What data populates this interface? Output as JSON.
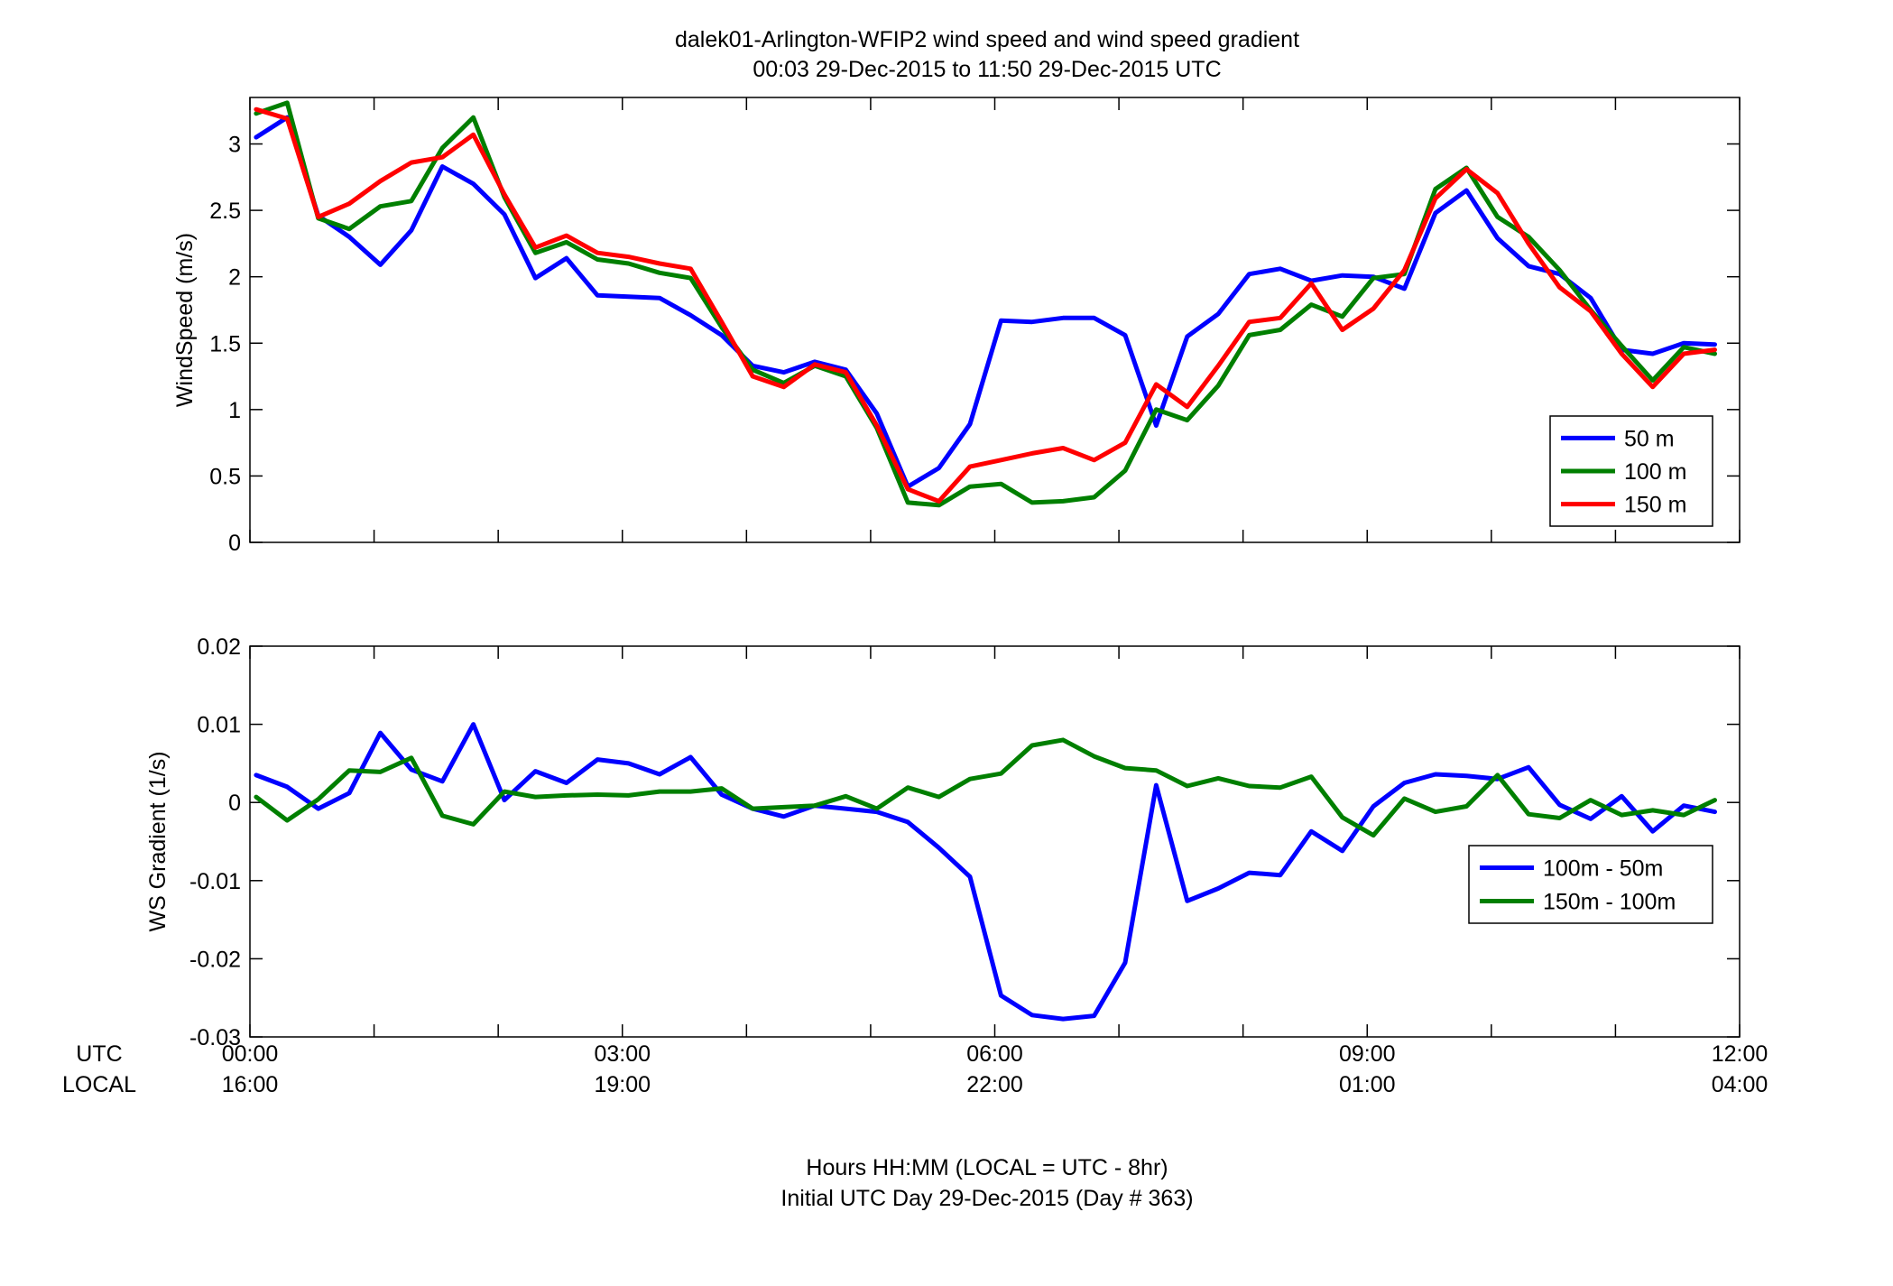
{
  "figure": {
    "title_line1": "dalek01-Arlington-WFIP2  wind speed and wind speed gradient",
    "title_line2": "00:03 29-Dec-2015 to 11:50 29-Dec-2015  UTC",
    "xlabel_line1": "Hours HH:MM  (LOCAL = UTC - 8hr)",
    "xlabel_line2": "Initial UTC Day 29-Dec-2015 (Day # 363)",
    "row_label_utc": "UTC",
    "row_label_local": "LOCAL"
  },
  "chart_data": [
    {
      "type": "line",
      "ylabel": "WindSpeed (m/s)",
      "xlim": [
        0,
        12
      ],
      "ylim": [
        0,
        3.35
      ],
      "yticks": [
        0,
        0.5,
        1,
        1.5,
        2,
        2.5,
        3
      ],
      "ytick_labels": [
        "0",
        "0.5",
        "1",
        "1.5",
        "2",
        "2.5",
        "3"
      ],
      "legend_position": "bottom-right",
      "x": [
        0.05,
        0.3,
        0.55,
        0.8,
        1.05,
        1.3,
        1.55,
        1.8,
        2.05,
        2.3,
        2.55,
        2.8,
        3.05,
        3.3,
        3.55,
        3.8,
        4.05,
        4.3,
        4.55,
        4.8,
        5.05,
        5.3,
        5.55,
        5.8,
        6.05,
        6.3,
        6.55,
        6.8,
        7.05,
        7.3,
        7.55,
        7.8,
        8.05,
        8.3,
        8.55,
        8.8,
        9.05,
        9.3,
        9.55,
        9.8,
        10.05,
        10.3,
        10.55,
        10.8,
        11.05,
        11.3,
        11.55,
        11.8
      ],
      "series": [
        {
          "name": "50 m",
          "color": "#0000ff",
          "values": [
            3.05,
            3.2,
            2.46,
            2.3,
            2.09,
            2.35,
            2.83,
            2.7,
            2.47,
            1.99,
            2.14,
            1.86,
            1.85,
            1.84,
            1.71,
            1.56,
            1.33,
            1.28,
            1.36,
            1.3,
            0.97,
            0.42,
            0.56,
            0.89,
            1.67,
            1.66,
            1.69,
            1.69,
            1.56,
            0.88,
            1.55,
            1.72,
            2.02,
            2.06,
            1.97,
            2.01,
            2.0,
            1.91,
            2.48,
            2.65,
            2.29,
            2.08,
            2.02,
            1.84,
            1.45,
            1.42,
            1.5,
            1.49
          ]
        },
        {
          "name": "100 m",
          "color": "#007f00",
          "values": [
            3.23,
            3.31,
            2.44,
            2.36,
            2.53,
            2.57,
            2.97,
            3.2,
            2.6,
            2.18,
            2.26,
            2.13,
            2.1,
            2.03,
            1.99,
            1.62,
            1.3,
            1.2,
            1.33,
            1.25,
            0.86,
            0.3,
            0.28,
            0.42,
            0.44,
            0.3,
            0.31,
            0.34,
            0.54,
            1.0,
            0.92,
            1.18,
            1.56,
            1.6,
            1.79,
            1.7,
            1.99,
            2.02,
            2.66,
            2.82,
            2.45,
            2.3,
            2.05,
            1.75,
            1.48,
            1.22,
            1.47,
            1.42
          ]
        },
        {
          "name": "150 m",
          "color": "#ff0000",
          "values": [
            3.26,
            3.19,
            2.45,
            2.55,
            2.72,
            2.86,
            2.9,
            3.07,
            2.62,
            2.22,
            2.31,
            2.18,
            2.15,
            2.1,
            2.06,
            1.66,
            1.25,
            1.17,
            1.34,
            1.28,
            0.88,
            0.4,
            0.31,
            0.57,
            0.62,
            0.67,
            0.71,
            0.62,
            0.75,
            1.19,
            1.02,
            1.33,
            1.66,
            1.69,
            1.95,
            1.6,
            1.76,
            2.05,
            2.59,
            2.81,
            2.63,
            2.25,
            1.92,
            1.74,
            1.42,
            1.17,
            1.42,
            1.45
          ]
        }
      ]
    },
    {
      "type": "line",
      "ylabel": "WS Gradient (1/s)",
      "xlim": [
        0,
        12
      ],
      "ylim": [
        -0.03,
        0.02
      ],
      "yticks": [
        -0.03,
        -0.02,
        -0.01,
        0,
        0.01,
        0.02
      ],
      "ytick_labels": [
        "-0.03",
        "-0.02",
        "-0.01",
        "0",
        "0.01",
        "0.02"
      ],
      "xticks": [
        0,
        3,
        6,
        9,
        12
      ],
      "xtick_labels_utc": [
        "00:00",
        "03:00",
        "06:00",
        "09:00",
        "12:00"
      ],
      "xtick_labels_local": [
        "16:00",
        "19:00",
        "22:00",
        "01:00",
        "04:00"
      ],
      "legend_position": "right",
      "x": [
        0.05,
        0.3,
        0.55,
        0.8,
        1.05,
        1.3,
        1.55,
        1.8,
        2.05,
        2.3,
        2.55,
        2.8,
        3.05,
        3.3,
        3.55,
        3.8,
        4.05,
        4.3,
        4.55,
        4.8,
        5.05,
        5.3,
        5.55,
        5.8,
        6.05,
        6.3,
        6.55,
        6.8,
        7.05,
        7.3,
        7.55,
        7.8,
        8.05,
        8.3,
        8.55,
        8.8,
        9.05,
        9.3,
        9.55,
        9.8,
        10.05,
        10.3,
        10.55,
        10.8,
        11.05,
        11.3,
        11.55,
        11.8
      ],
      "series": [
        {
          "name": "100m - 50m",
          "color": "#0000ff",
          "values": [
            0.0035,
            0.002,
            -0.0008,
            0.0012,
            0.0089,
            0.0042,
            0.0027,
            0.01,
            0.0003,
            0.004,
            0.0025,
            0.0055,
            0.005,
            0.0036,
            0.0058,
            0.001,
            -0.0008,
            -0.0018,
            -0.0004,
            -0.0008,
            -0.0012,
            -0.0025,
            -0.0058,
            -0.0095,
            -0.0247,
            -0.0272,
            -0.0277,
            -0.0273,
            -0.0205,
            0.0022,
            -0.0126,
            -0.011,
            -0.009,
            -0.0093,
            -0.0037,
            -0.0062,
            -0.0005,
            0.0025,
            0.0036,
            0.0034,
            0.003,
            0.0045,
            -0.0003,
            -0.0021,
            0.0008,
            -0.0037,
            -0.0004,
            -0.0012
          ]
        },
        {
          "name": "150m - 100m",
          "color": "#007f00",
          "values": [
            0.0007,
            -0.0023,
            0.0004,
            0.0041,
            0.0039,
            0.0057,
            -0.0017,
            -0.0028,
            0.0014,
            0.0007,
            0.0009,
            0.001,
            0.0009,
            0.0014,
            0.0014,
            0.0018,
            -0.0008,
            -0.0006,
            -0.0004,
            0.0008,
            -0.0008,
            0.0019,
            0.0007,
            0.003,
            0.0037,
            0.0073,
            0.008,
            0.0059,
            0.0044,
            0.0041,
            0.0021,
            0.0031,
            0.0021,
            0.0019,
            0.0033,
            -0.0019,
            -0.0042,
            0.0005,
            -0.0012,
            -0.0005,
            0.0035,
            -0.0015,
            -0.002,
            0.0003,
            -0.0016,
            -0.001,
            -0.0016,
            0.0003
          ]
        }
      ]
    }
  ]
}
